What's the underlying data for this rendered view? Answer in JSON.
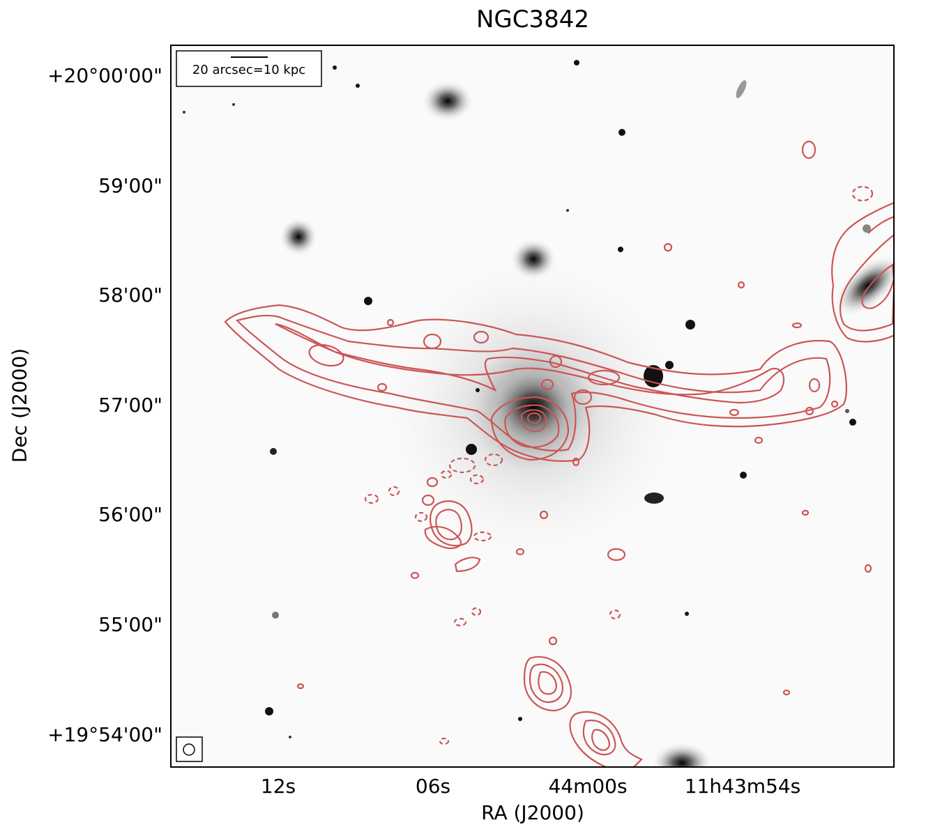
{
  "figure": {
    "title": "NGC3842",
    "xlabel": "RA (J2000)",
    "ylabel": "Dec (J2000)",
    "dec_ticks": [
      "+20°00'00\"",
      "59'00\"",
      "58'00\"",
      "57'00\"",
      "56'00\"",
      "55'00\"",
      "+19°54'00\""
    ],
    "ra_ticks": [
      "12s",
      "06s",
      "44m00s",
      "11h43m54s"
    ],
    "scalebar_label": "20 arcsec=10 kpc",
    "contour_color": "#cc5555",
    "image_colormap": "inverted grayscale"
  }
}
